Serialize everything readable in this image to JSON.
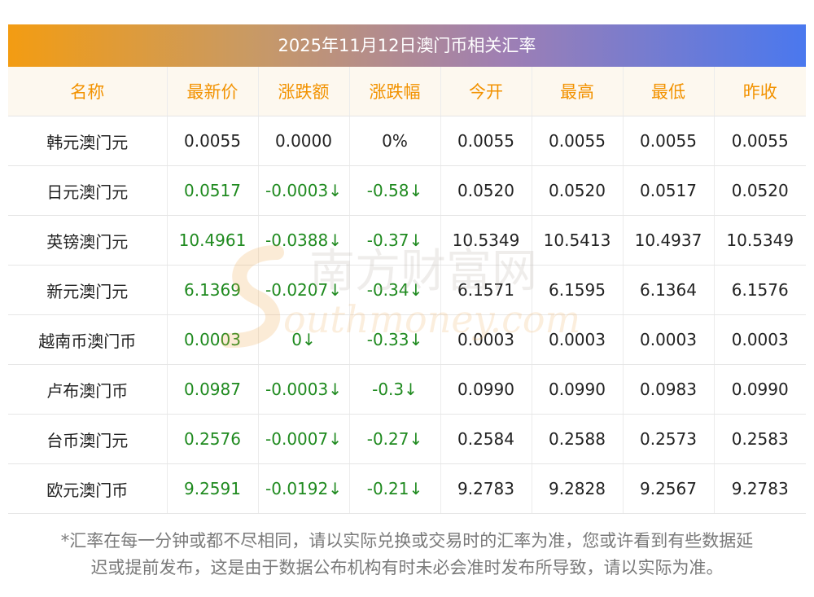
{
  "title": "2025年11月12日澳门币相关汇率",
  "columns": [
    "名称",
    "最新价",
    "涨跌额",
    "涨跌幅",
    "今开",
    "最高",
    "最低",
    "昨收"
  ],
  "rows": [
    [
      "韩元澳门元",
      "0.0055",
      "0.0000",
      "0%",
      "0.0055",
      "0.0055",
      "0.0055",
      "0.0055"
    ],
    [
      "日元澳门元",
      "0.0517",
      "-0.0003↓",
      "-0.58↓",
      "0.0520",
      "0.0520",
      "0.0517",
      "0.0520"
    ],
    [
      "英镑澳门元",
      "10.4961",
      "-0.0388↓",
      "-0.37↓",
      "10.5349",
      "10.5413",
      "10.4937",
      "10.5349"
    ],
    [
      "新元澳门元",
      "6.1369",
      "-0.0207↓",
      "-0.34↓",
      "6.1571",
      "6.1595",
      "6.1364",
      "6.1576"
    ],
    [
      "越南币澳门币",
      "0.0003",
      "0↓",
      "-0.33↓",
      "0.0003",
      "0.0003",
      "0.0003",
      "0.0003"
    ],
    [
      "卢布澳门币",
      "0.0987",
      "-0.0003↓",
      "-0.3↓",
      "0.0990",
      "0.0990",
      "0.0983",
      "0.0990"
    ],
    [
      "台币澳门元",
      "0.2576",
      "-0.0007↓",
      "-0.27↓",
      "0.2584",
      "0.2588",
      "0.2573",
      "0.2583"
    ],
    [
      "欧元澳门币",
      "9.2591",
      "-0.0192↓",
      "-0.21↓",
      "9.2783",
      "9.2828",
      "9.2567",
      "9.2783"
    ]
  ],
  "colored_rows": [
    1,
    2,
    3,
    4,
    5,
    6,
    7
  ],
  "colors": {
    "header_text": "#f29200",
    "change_green": "#1f8a1f",
    "banner_start": "#f39c12",
    "banner_end": "#4a78ee"
  },
  "watermark": {
    "cn": "南方财富网",
    "en": "outhmoney.com"
  },
  "note_line1": "*汇率在每一分钟或都不尽相同，请以实际兑换或交易时的汇率为准，您或许看到有些数据延",
  "note_line2": "迟或提前发布，这是由于数据公布机构有时未必会准时发布所导致，请以实际为准。"
}
